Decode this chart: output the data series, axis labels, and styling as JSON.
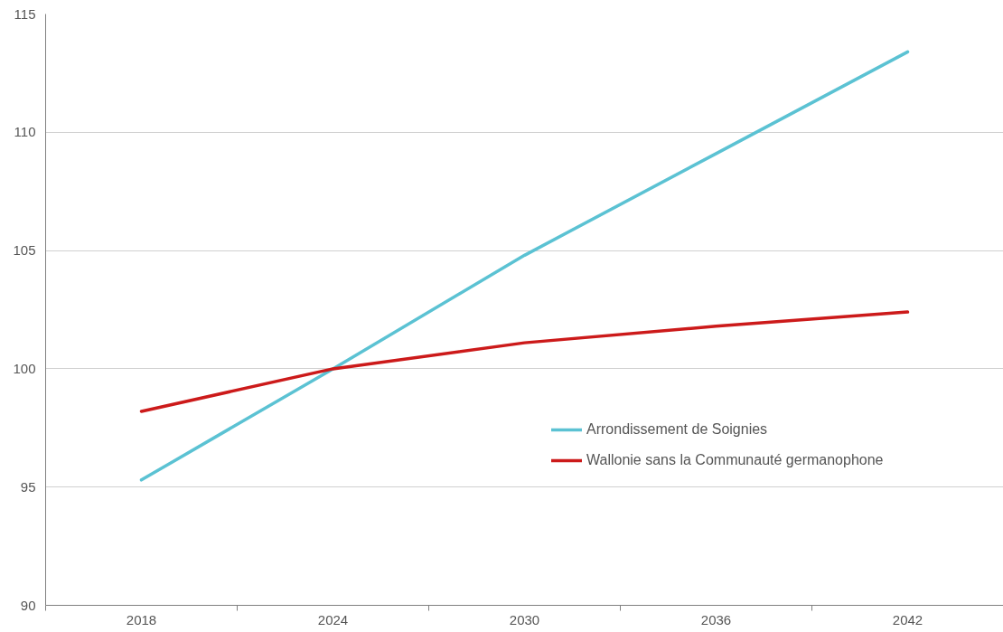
{
  "chart_data": {
    "type": "line",
    "categories": [
      "2018",
      "2024",
      "2030",
      "2036",
      "2042"
    ],
    "series": [
      {
        "name": "Arrondissement de Soignies",
        "color": "#5bc2d3",
        "values": [
          95.3,
          100,
          104.8,
          109.1,
          113.4
        ]
      },
      {
        "name": "Wallonie sans la Communauté germanophone",
        "color": "#cc1a1a",
        "values": [
          98.2,
          100,
          101.1,
          101.8,
          102.4
        ]
      }
    ],
    "ylim": [
      90,
      115
    ],
    "yticks": [
      90,
      95,
      100,
      105,
      110,
      115
    ],
    "grid": "y",
    "legend": "right",
    "line_style": "solid",
    "marker": "none"
  }
}
